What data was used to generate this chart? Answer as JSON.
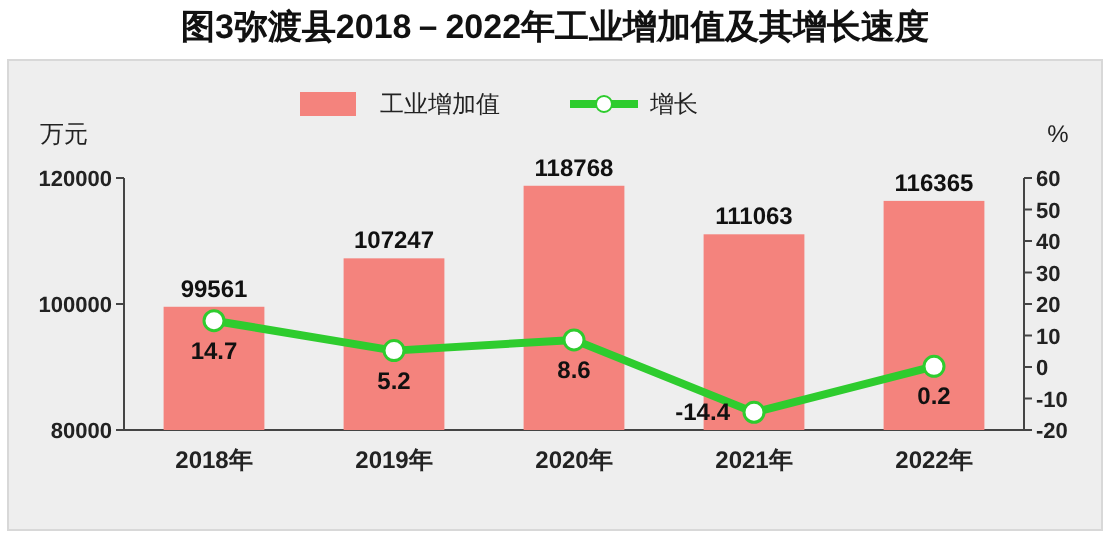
{
  "chart_data": {
    "type": "bar",
    "title": "图3弥渡县2018－2022年工业增加值及其增长速度",
    "ylabel": "万元",
    "y2label": "%",
    "categories": [
      "2018年",
      "2019年",
      "2020年",
      "2021年",
      "2022年"
    ],
    "series": [
      {
        "name": "工业增加值",
        "type": "bar",
        "color": "#f4837d",
        "values": [
          99561,
          107247,
          118768,
          111063,
          116365
        ]
      },
      {
        "name": "增长",
        "type": "line",
        "axis": "y2",
        "color": "#2ecc2e",
        "values": [
          14.7,
          5.2,
          8.6,
          -14.4,
          0.2
        ]
      }
    ],
    "ylim": [
      80000,
      120000
    ],
    "yticks": [
      80000,
      100000,
      120000
    ],
    "y2lim": [
      -20,
      60
    ],
    "y2ticks": [
      -20,
      -10,
      0,
      10,
      20,
      30,
      40,
      50,
      60
    ],
    "marker": "circle",
    "data_labels": true,
    "legend": "top",
    "grid": false
  }
}
